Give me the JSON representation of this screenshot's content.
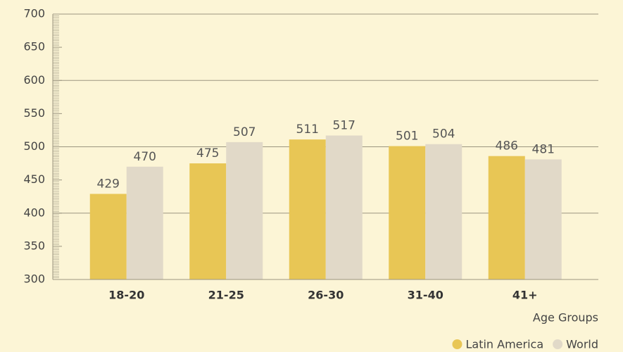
{
  "chart_data": {
    "type": "bar",
    "x_label": "Age Groups",
    "categories": [
      "18-20",
      "21-25",
      "26-30",
      "31-40",
      "41+"
    ],
    "series": [
      {
        "name": "Latin America",
        "color": "#e8c655",
        "values": [
          429,
          475,
          511,
          501,
          486
        ]
      },
      {
        "name": "World",
        "color": "#e1d9c8",
        "values": [
          470,
          507,
          517,
          504,
          481
        ]
      }
    ],
    "ylim": [
      300,
      700
    ],
    "yticks": [
      300,
      350,
      400,
      450,
      500,
      550,
      600,
      650,
      700
    ],
    "grid_lines": [
      400,
      500,
      600,
      700
    ],
    "legend": "bottom-right"
  }
}
